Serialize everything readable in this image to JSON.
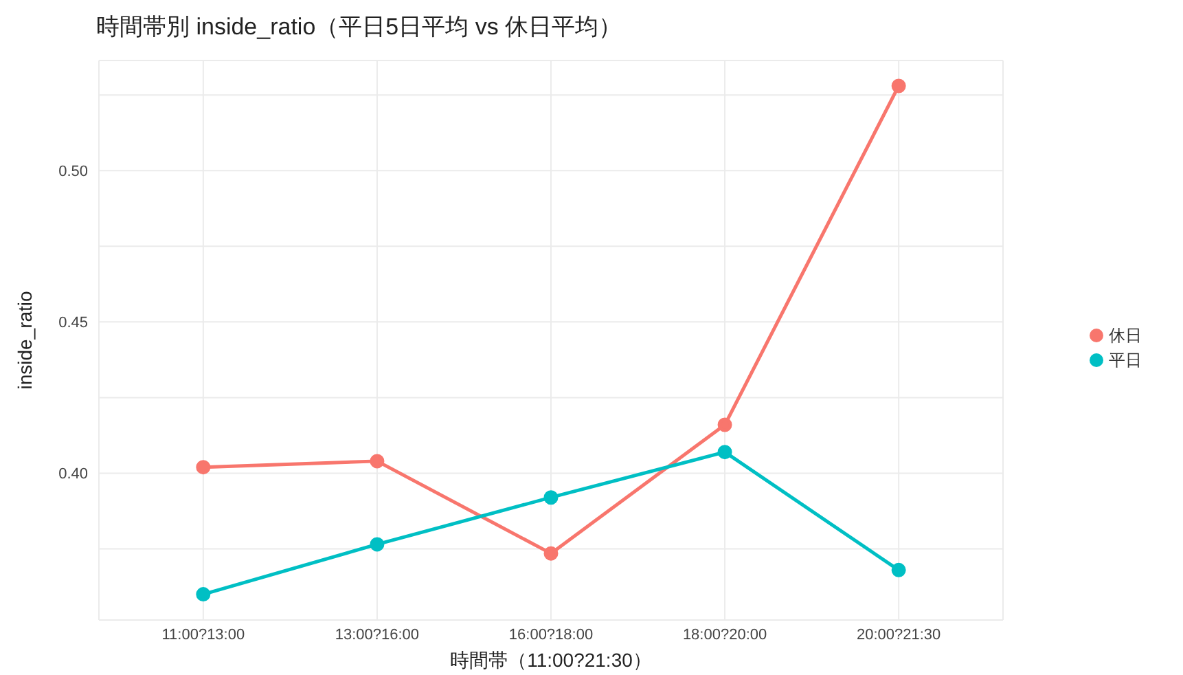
{
  "chart_data": {
    "type": "line",
    "title": "時間帯別 inside_ratio（平日5日平均 vs 休日平均）",
    "xlabel": "時間帯（11:00?21:30）",
    "ylabel": "inside_ratio",
    "categories": [
      "11:00?13:00",
      "13:00?16:00",
      "16:00?18:00",
      "18:00?20:00",
      "20:00?21:30"
    ],
    "series": [
      {
        "name": "休日",
        "color": "#f8766d",
        "values": [
          0.402,
          0.404,
          0.3735,
          0.416,
          0.528
        ]
      },
      {
        "name": "平日",
        "color": "#00bfc4",
        "values": [
          0.36,
          0.3765,
          0.392,
          0.407,
          0.368
        ]
      }
    ],
    "ylim": [
      0.3515,
      0.5364
    ],
    "yticks": [
      {
        "value": 0.375,
        "label": null
      },
      {
        "value": 0.4,
        "label": "0.40"
      },
      {
        "value": 0.425,
        "label": null
      },
      {
        "value": 0.45,
        "label": "0.45"
      },
      {
        "value": 0.475,
        "label": null
      },
      {
        "value": 0.5,
        "label": "0.50"
      },
      {
        "value": 0.525,
        "label": null
      }
    ],
    "grid": true,
    "legend": "right",
    "marker": "circle",
    "line_style": "solid"
  }
}
